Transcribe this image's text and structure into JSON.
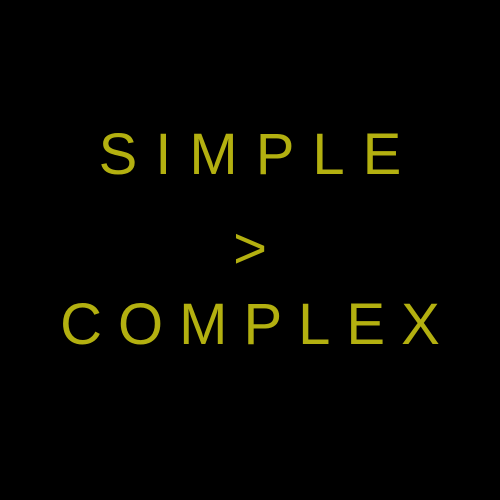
{
  "poster": {
    "line1": "SIMPLE",
    "line2": ">",
    "line3": "COMPLEX"
  },
  "colors": {
    "background": "#000000",
    "text": "#b3b010"
  }
}
